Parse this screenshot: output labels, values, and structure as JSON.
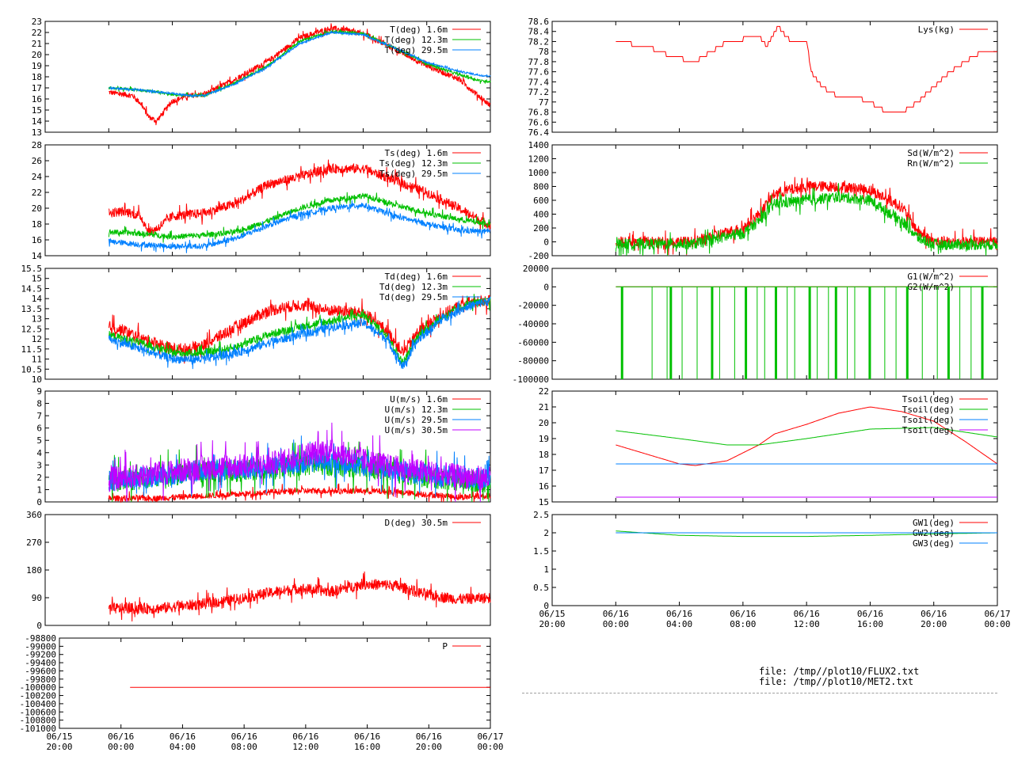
{
  "x_ticks": [
    "06/15\n20:00",
    "06/16\n00:00",
    "06/16\n04:00",
    "06/16\n08:00",
    "06/16\n12:00",
    "06/16\n16:00",
    "06/16\n20:00",
    "06/17\n00:00"
  ],
  "files": [
    "file: /tmp//plot10/FLUX2.txt",
    "file: /tmp//plot10/MET2.txt"
  ],
  "colors": {
    "red": "#ff0000",
    "green": "#00c000",
    "blue": "#0080ff",
    "purple": "#c000ff"
  },
  "chart_data": [
    {
      "type": "line",
      "ylim": [
        13,
        23
      ],
      "yticks": [
        "13",
        "14",
        "15",
        "16",
        "17",
        "18",
        "19",
        "20",
        "21",
        "22",
        "23"
      ],
      "series": [
        {
          "name": "T(deg)  1.6m",
          "color": "red",
          "noise": 0.25,
          "t": [
            0,
            1.5,
            2,
            2.5,
            3,
            4,
            5,
            6,
            8,
            10,
            12,
            14,
            16,
            18,
            20,
            22,
            23.5,
            24
          ],
          "v": [
            16.6,
            16.3,
            15.6,
            14.4,
            14.0,
            15.8,
            16.3,
            16.4,
            17.8,
            19.4,
            21.5,
            22.4,
            21.9,
            20.5,
            19.0,
            17.8,
            16.0,
            15.4
          ]
        },
        {
          "name": "T(deg) 12.3m",
          "color": "green",
          "noise": 0.12,
          "t": [
            0,
            2,
            4,
            5,
            6,
            8,
            10,
            12,
            14,
            16,
            18,
            20,
            22,
            23.5,
            24
          ],
          "v": [
            17.0,
            16.8,
            16.4,
            16.3,
            16.3,
            17.5,
            19.0,
            21.2,
            22.1,
            21.9,
            20.6,
            19.2,
            18.2,
            17.6,
            17.6
          ]
        },
        {
          "name": "T(deg) 29.5m",
          "color": "blue",
          "noise": 0.08,
          "t": [
            0,
            2,
            4,
            5,
            6,
            8,
            10,
            12,
            14,
            16,
            18,
            20,
            22,
            23.5,
            24
          ],
          "v": [
            17.0,
            16.8,
            16.5,
            16.3,
            16.3,
            17.4,
            18.9,
            21.0,
            22.0,
            21.8,
            20.6,
            19.3,
            18.5,
            18.1,
            18.1
          ]
        }
      ]
    },
    {
      "type": "line",
      "ylim": [
        14,
        28
      ],
      "yticks": [
        "14",
        "16",
        "18",
        "20",
        "22",
        "24",
        "26",
        "28"
      ],
      "series": [
        {
          "name": "Ts(deg)  1.6m",
          "color": "red",
          "noise": 0.6,
          "t": [
            0,
            1,
            2,
            2.5,
            3,
            4,
            5,
            6,
            8,
            10,
            12,
            14,
            16,
            18,
            20,
            22,
            24
          ],
          "v": [
            19.4,
            19.6,
            19.0,
            17.0,
            17.4,
            19.0,
            19.2,
            19.4,
            20.6,
            23.0,
            24.0,
            25.0,
            25.0,
            23.5,
            22.0,
            20.0,
            17.8
          ]
        },
        {
          "name": "Ts(deg) 12.3m",
          "color": "green",
          "noise": 0.35,
          "t": [
            0,
            2,
            4,
            6,
            8,
            10,
            12,
            14,
            16,
            18,
            20,
            22,
            24
          ],
          "v": [
            17.0,
            16.8,
            16.4,
            16.6,
            17.0,
            18.4,
            20.0,
            21.0,
            21.6,
            20.4,
            19.4,
            18.6,
            18.0
          ]
        },
        {
          "name": "Ts(deg) 29.5m",
          "color": "blue",
          "noise": 0.35,
          "t": [
            0,
            2,
            4,
            6,
            8,
            10,
            12,
            14,
            16,
            18,
            20,
            22,
            24
          ],
          "v": [
            15.8,
            15.4,
            15.2,
            15.2,
            16.2,
            17.8,
            19.2,
            20.0,
            20.4,
            19.0,
            18.0,
            17.2,
            17.0
          ]
        }
      ]
    },
    {
      "type": "line",
      "ylim": [
        10,
        15.5
      ],
      "yticks": [
        "10",
        "10.5",
        "11",
        "11.5",
        "12",
        "12.5",
        "13",
        "13.5",
        "14",
        "14.5",
        "15",
        "15.5"
      ],
      "series": [
        {
          "name": "Td(deg)  1.6m",
          "color": "red",
          "noise": 0.3,
          "t": [
            0,
            1,
            2,
            3,
            4,
            5,
            6,
            8,
            10,
            12,
            14,
            16,
            17.5,
            18.5,
            19.5,
            21,
            22.5,
            24
          ],
          "v": [
            12.6,
            12.4,
            12.0,
            11.8,
            11.5,
            11.5,
            11.7,
            12.6,
            13.4,
            13.7,
            13.4,
            13.3,
            12.4,
            11.3,
            12.4,
            13.2,
            13.8,
            13.9
          ]
        },
        {
          "name": "Td(deg) 12.3m",
          "color": "green",
          "noise": 0.2,
          "t": [
            0,
            2,
            4,
            6,
            8,
            10,
            12,
            14,
            16,
            17.5,
            18.5,
            19.5,
            21,
            22.5,
            24
          ],
          "v": [
            12.2,
            11.8,
            11.3,
            11.3,
            11.6,
            12.2,
            12.6,
            12.9,
            13.2,
            12.2,
            10.8,
            12.2,
            13.1,
            13.7,
            13.9
          ]
        },
        {
          "name": "Td(deg) 29.5m",
          "color": "blue",
          "noise": 0.22,
          "t": [
            0,
            2,
            4,
            6,
            8,
            10,
            12,
            14,
            16,
            17.5,
            18.5,
            19.5,
            21,
            22.5,
            24
          ],
          "v": [
            12.0,
            11.5,
            11.0,
            11.0,
            11.3,
            11.8,
            12.2,
            12.6,
            12.8,
            12.0,
            10.6,
            12.0,
            13.0,
            13.6,
            13.9
          ]
        }
      ]
    },
    {
      "type": "line",
      "ylim": [
        0,
        9
      ],
      "yticks": [
        "0",
        "1",
        "2",
        "3",
        "4",
        "5",
        "6",
        "7",
        "8",
        "9"
      ],
      "series": [
        {
          "name": "U(m/s)  1.6m",
          "color": "red",
          "noise": 0.25,
          "t": [
            0,
            3,
            6,
            8,
            10,
            12,
            14,
            16,
            18,
            20,
            22,
            24
          ],
          "v": [
            0.3,
            0.3,
            0.5,
            0.6,
            0.8,
            0.9,
            0.9,
            0.9,
            0.8,
            0.6,
            0.4,
            0.5
          ]
        },
        {
          "name": "U(m/s) 12.3m",
          "color": "green",
          "noise": 0.9,
          "t": [
            0,
            3,
            6,
            8,
            10,
            12,
            14,
            16,
            18,
            20,
            22,
            24
          ],
          "v": [
            1.6,
            2.0,
            2.5,
            2.5,
            2.6,
            3.0,
            3.0,
            2.8,
            2.4,
            2.0,
            1.8,
            1.6
          ]
        },
        {
          "name": "U(m/s) 29.5m",
          "color": "blue",
          "noise": 0.9,
          "t": [
            0,
            3,
            6,
            8,
            10,
            12,
            14,
            16,
            18,
            20,
            22,
            24
          ],
          "v": [
            1.7,
            2.1,
            2.6,
            2.6,
            2.7,
            3.2,
            3.3,
            3.0,
            2.6,
            2.2,
            2.0,
            1.8
          ]
        },
        {
          "name": "U(m/s) 30.5m",
          "color": "purple",
          "noise": 1.0,
          "t": [
            0,
            3,
            6,
            8,
            10,
            12,
            14,
            16,
            18,
            20,
            22,
            24
          ],
          "v": [
            1.8,
            2.3,
            2.8,
            2.9,
            3.0,
            3.8,
            4.2,
            3.4,
            2.8,
            2.4,
            2.1,
            1.9
          ]
        }
      ]
    },
    {
      "type": "line",
      "ylim": [
        0,
        360
      ],
      "yticks": [
        "0",
        "90",
        "180",
        "270",
        "360"
      ],
      "series": [
        {
          "name": "D(deg)  30.5m",
          "color": "red",
          "noise": 18,
          "t": [
            0,
            3,
            6,
            8,
            10,
            12,
            14,
            16,
            18,
            20,
            22,
            24
          ],
          "v": [
            55,
            55,
            70,
            85,
            105,
            120,
            110,
            135,
            130,
            100,
            85,
            90
          ]
        }
      ]
    },
    {
      "type": "line",
      "ylim": [
        -101000,
        -98800
      ],
      "yticks": [
        "-101000",
        "-100800",
        "-100600",
        "-100400",
        "-100200",
        "-100000",
        "-99800",
        "-99600",
        "-99400",
        "-99200",
        "-99000",
        "-98800"
      ],
      "series": [
        {
          "name": "P",
          "color": "red",
          "noise": 0,
          "t": [
            0,
            24
          ],
          "v": [
            -100000,
            -100000
          ]
        }
      ]
    },
    {
      "type": "line",
      "ylim": [
        76.4,
        78.6
      ],
      "yticks": [
        "76.4",
        "76.6",
        "76.8",
        "77",
        "77.2",
        "77.4",
        "77.6",
        "77.8",
        "78",
        "78.2",
        "78.4",
        "78.6"
      ],
      "series": [
        {
          "name": "Lys(kg)",
          "color": "red",
          "noise": 0,
          "step": 0.1,
          "t": [
            0,
            2,
            3.5,
            5,
            7,
            9,
            9.5,
            10.2,
            11,
            12,
            12.3,
            13,
            14,
            15,
            16,
            17,
            18,
            19,
            20,
            21,
            22,
            23,
            24
          ],
          "v": [
            78.2,
            78.1,
            77.9,
            77.8,
            78.2,
            78.3,
            78.1,
            78.5,
            78.2,
            78.2,
            77.6,
            77.3,
            77.1,
            77.1,
            77.0,
            76.8,
            76.8,
            77.0,
            77.3,
            77.6,
            77.8,
            78.0,
            78.0
          ]
        }
      ]
    },
    {
      "type": "line",
      "ylim": [
        -200,
        1400
      ],
      "yticks": [
        "-200",
        "0",
        "200",
        "400",
        "600",
        "800",
        "1000",
        "1200",
        "1400"
      ],
      "series": [
        {
          "name": "Sd(W/m^2)",
          "color": "red",
          "noise": 80,
          "t": [
            0,
            5,
            6,
            8,
            9,
            10,
            12,
            14,
            16,
            18,
            19,
            20,
            24
          ],
          "v": [
            0,
            0,
            80,
            200,
            400,
            700,
            800,
            800,
            750,
            500,
            150,
            0,
            0
          ]
        },
        {
          "name": "Rn(W/m^2)",
          "color": "green",
          "noise": 80,
          "t": [
            0,
            5,
            6,
            8,
            9,
            10,
            12,
            14,
            16,
            18,
            19,
            20,
            24
          ],
          "v": [
            -30,
            -30,
            30,
            120,
            300,
            550,
            600,
            650,
            600,
            300,
            60,
            -40,
            -40
          ]
        }
      ]
    },
    {
      "type": "line",
      "ylim": [
        -100000,
        20000
      ],
      "yticks": [
        "-100000",
        "-80000",
        "-60000",
        "-40000",
        "-20000",
        "0",
        "20000"
      ],
      "series": [
        {
          "name": "G1(W/m^2)",
          "color": "red",
          "noise": 0,
          "t": [
            0,
            24
          ],
          "v": [
            0,
            0
          ]
        },
        {
          "name": "G2(W/m^2)",
          "color": "green",
          "noise": 0,
          "t": [
            0,
            24
          ],
          "v": [
            0,
            0
          ]
        }
      ]
    },
    {
      "type": "line",
      "ylim": [
        15,
        22
      ],
      "yticks": [
        "15",
        "16",
        "17",
        "18",
        "19",
        "20",
        "21",
        "22"
      ],
      "series": [
        {
          "name": "Tsoil(deg)",
          "color": "red",
          "noise": 0,
          "t": [
            0,
            2,
            4,
            5,
            7,
            9,
            10,
            11,
            12,
            14,
            16,
            18,
            20,
            22,
            24
          ],
          "v": [
            18.6,
            18.0,
            17.4,
            17.3,
            17.6,
            18.6,
            19.3,
            19.6,
            19.9,
            20.6,
            21.0,
            20.7,
            20.1,
            18.8,
            17.4
          ]
        },
        {
          "name": "Tsoil(deg)",
          "color": "green",
          "noise": 0,
          "t": [
            0,
            4,
            7,
            9,
            12,
            16,
            20,
            24
          ],
          "v": [
            19.5,
            19.0,
            18.6,
            18.6,
            19.0,
            19.6,
            19.7,
            19.1
          ]
        },
        {
          "name": "Tsoil(deg)",
          "color": "blue",
          "noise": 0,
          "t": [
            0,
            24
          ],
          "v": [
            17.4,
            17.4
          ]
        },
        {
          "name": "Tsoil(deg)",
          "color": "purple",
          "noise": 0,
          "t": [
            0,
            24
          ],
          "v": [
            15.3,
            15.3
          ]
        }
      ]
    },
    {
      "type": "line",
      "ylim": [
        0,
        2.5
      ],
      "yticks": [
        "0",
        "0.5",
        "1",
        "1.5",
        "2",
        "2.5"
      ],
      "series": [
        {
          "name": "GW1(deg)",
          "color": "red",
          "noise": 0,
          "t": [
            0,
            24
          ],
          "v": [
            2.0,
            2.0
          ]
        },
        {
          "name": "GW2(deg)",
          "color": "green",
          "noise": 0,
          "t": [
            0,
            4,
            8,
            12,
            16,
            20,
            24
          ],
          "v": [
            2.05,
            1.93,
            1.9,
            1.9,
            1.93,
            1.97,
            2.0
          ]
        },
        {
          "name": "GW3(deg)",
          "color": "blue",
          "noise": 0,
          "t": [
            0,
            24
          ],
          "v": [
            2.0,
            2.0
          ]
        }
      ]
    }
  ]
}
